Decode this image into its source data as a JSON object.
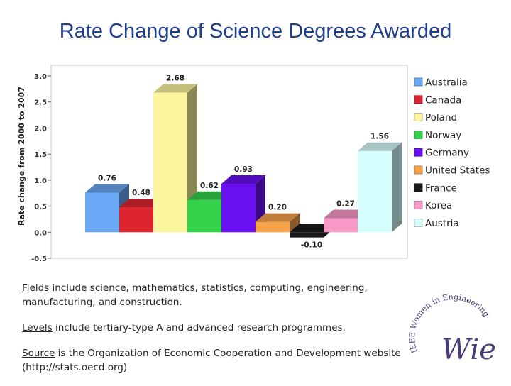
{
  "title": "Rate Change of Science Degrees Awarded",
  "notes": [
    {
      "key": "Fields",
      "text": " include science, mathematics, statistics, computing, engineering, manufacturing, and construction."
    },
    {
      "key": "Levels",
      "text": " include tertiary-type A and advanced research programmes."
    },
    {
      "key": "Source",
      "text": " is the Organization of Economic Cooperation and Development website (http://stats.oecd.org)"
    }
  ],
  "logo": {
    "text": "IEEE Women in Engineering",
    "mark": "Wie"
  },
  "chart_data": {
    "type": "bar",
    "ylabel": "Rate change from 2000 to 2007",
    "ylim": [
      -0.5,
      3.0
    ],
    "yticks": [
      "3.0",
      "2.5",
      "2.0",
      "1.5",
      "1.0",
      "0.5",
      "0.0",
      "-0.5"
    ],
    "grid": false,
    "legend_position": "right",
    "series": [
      {
        "name": "Australia",
        "value": 0.76,
        "label": "0.76",
        "color": "#6aa8f5"
      },
      {
        "name": "Canada",
        "value": 0.48,
        "label": "0.48",
        "color": "#dd2530"
      },
      {
        "name": "Poland",
        "value": 2.68,
        "label": "2.68",
        "color": "#fbf59f"
      },
      {
        "name": "Norway",
        "value": 0.62,
        "label": "0.62",
        "color": "#33d14a"
      },
      {
        "name": "Germany",
        "value": 0.93,
        "label": "0.93",
        "color": "#6a10f0"
      },
      {
        "name": "United States",
        "value": 0.2,
        "label": "0.20",
        "color": "#f6a24a"
      },
      {
        "name": "France",
        "value": -0.1,
        "label": "-0.10",
        "color": "#1a1a1a"
      },
      {
        "name": "Korea",
        "value": 0.27,
        "label": "0.27",
        "color": "#f79ac8"
      },
      {
        "name": "Austria",
        "value": 1.56,
        "label": "1.56",
        "color": "#d6fdfd"
      }
    ]
  }
}
